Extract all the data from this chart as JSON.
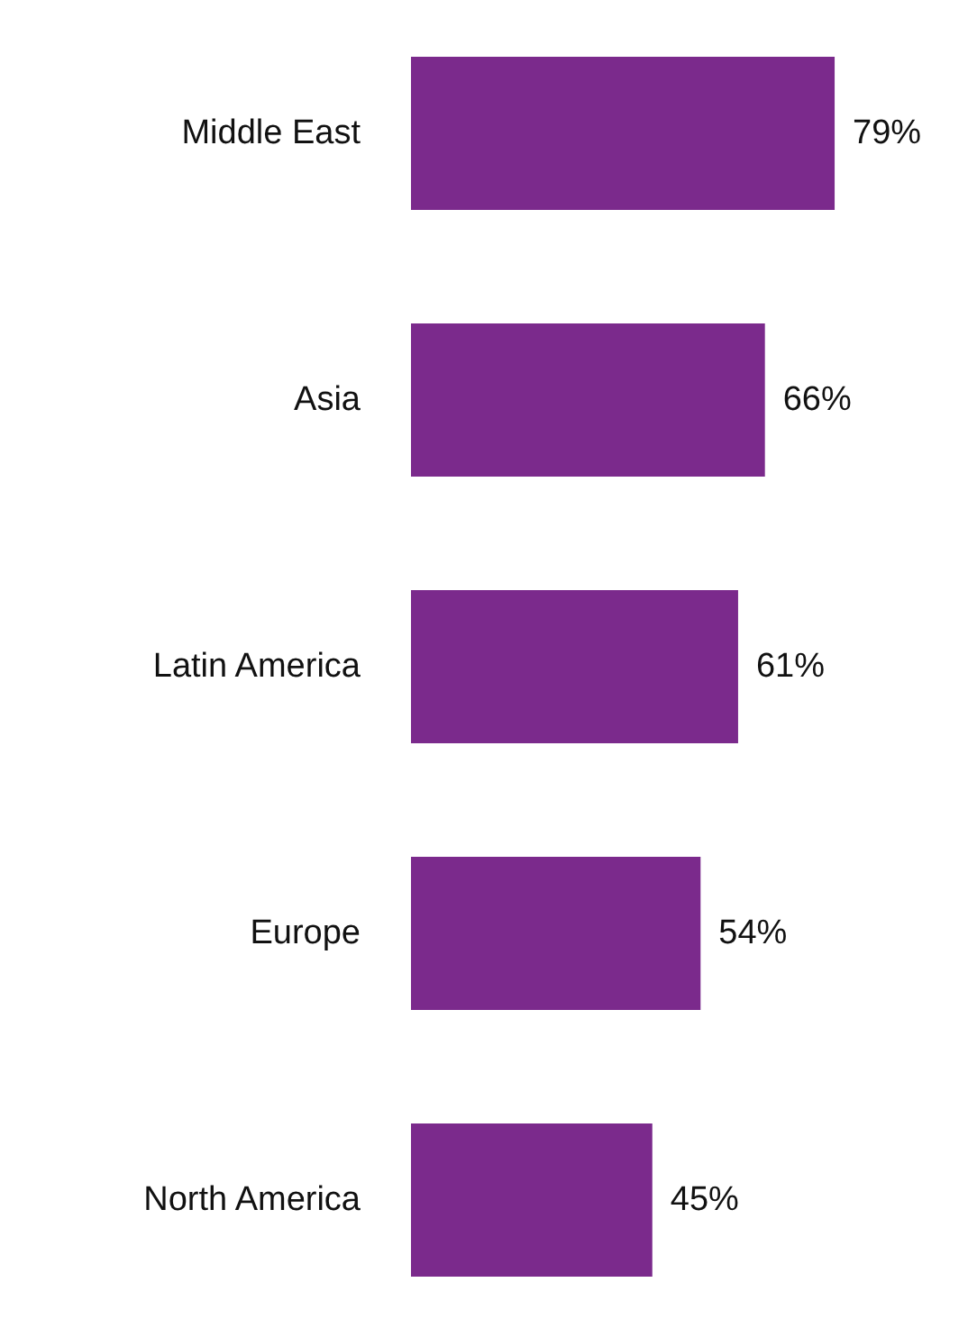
{
  "chart_data": {
    "type": "bar",
    "orientation": "horizontal",
    "categories": [
      "Middle East",
      "Asia",
      "Latin America",
      "Europe",
      "North America"
    ],
    "values": [
      79,
      66,
      61,
      54,
      45
    ],
    "value_labels": [
      "79%",
      "66%",
      "61%",
      "54%",
      "45%"
    ],
    "color": "#7b2a8c"
  }
}
